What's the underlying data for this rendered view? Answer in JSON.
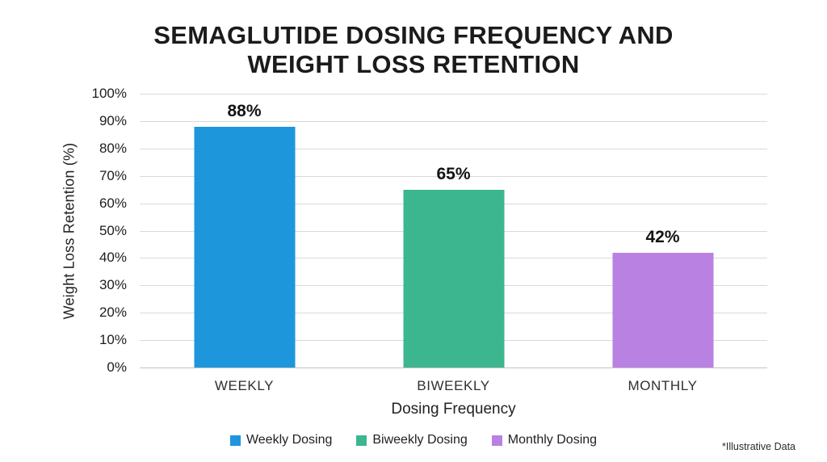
{
  "chart_data": {
    "type": "bar",
    "title": "SEMAGLUTIDE DOSING FREQUENCY AND WEIGHT LOSS RETENTION",
    "title_lines": [
      "SEMAGLUTIDE DOSING FREQUENCY AND",
      "WEIGHT LOSS RETENTION"
    ],
    "categories": [
      "WEEKLY",
      "BIWEEKLY",
      "MONTHLY"
    ],
    "values": [
      88,
      65,
      42
    ],
    "bars": [
      {
        "category": "WEEKLY",
        "value": 88,
        "value_label": "88%",
        "color": "#1e96dc"
      },
      {
        "category": "BIWEEKLY",
        "value": 65,
        "value_label": "65%",
        "color": "#3cb68f"
      },
      {
        "category": "MONTHLY",
        "value": 42,
        "value_label": "42%",
        "color": "#b981e2"
      }
    ],
    "xlabel": "Dosing Frequency",
    "ylabel": "Weight Loss Retention (%)",
    "ylim": [
      0,
      100
    ],
    "yticks": [
      {
        "label": "100%",
        "value": 100
      },
      {
        "label": "90%",
        "value": 90
      },
      {
        "label": "80%",
        "value": 80
      },
      {
        "label": "70%",
        "value": 70
      },
      {
        "label": "60%",
        "value": 60
      },
      {
        "label": "50%",
        "value": 50
      },
      {
        "label": "40%",
        "value": 40
      },
      {
        "label": "30%",
        "value": 30
      },
      {
        "label": "20%",
        "value": 20
      },
      {
        "label": "10%",
        "value": 10
      },
      {
        "label": "0%",
        "value": 0
      }
    ],
    "grid": true,
    "legend_position": "bottom",
    "legend": [
      {
        "label": "Weekly Dosing",
        "color": "#1e96dc"
      },
      {
        "label": "Biweekly Dosing",
        "color": "#3cb68f"
      },
      {
        "label": "Monthly Dosing",
        "color": "#b981e2"
      }
    ],
    "footnote": "*Illustrative Data",
    "colors": {
      "background": "#ffffff",
      "gridline": "#d9d9d9",
      "baseline": "#c2c2c2",
      "text": "#1b1b1b"
    }
  }
}
